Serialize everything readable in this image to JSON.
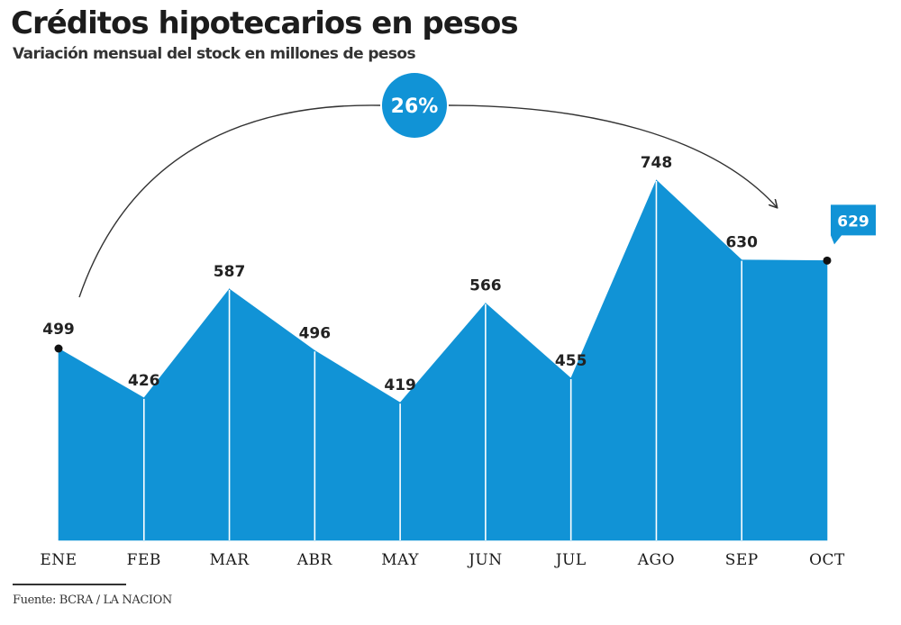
{
  "title": "Créditos hipotecarios en pesos",
  "subtitle": "Variación mensual del stock en millones de pesos",
  "source": "Fuente: BCRA / LA NACION",
  "colors": {
    "area": "#1193d6",
    "divider": "#ffffff",
    "highlight": "#1193d6",
    "arrow": "#333333",
    "marker": "#111111"
  },
  "chart_data": {
    "type": "area",
    "categories": [
      "ENE",
      "FEB",
      "MAR",
      "ABR",
      "MAY",
      "JUN",
      "JUL",
      "AGO",
      "SEP",
      "OCT"
    ],
    "values": [
      499,
      426,
      587,
      496,
      419,
      566,
      455,
      748,
      630,
      629
    ],
    "data_labels": [
      "499",
      "426",
      "587",
      "496",
      "419",
      "566",
      "455",
      "748",
      "630",
      "629"
    ],
    "title": "Créditos hipotecarios en pesos",
    "subtitle": "Variación mensual del stock en millones de pesos",
    "xlabel": "",
    "ylabel": "",
    "ylim": [
      0,
      800
    ],
    "grid": false,
    "legend": "none",
    "annotations": [
      {
        "text": "26%",
        "type": "arrow",
        "from": "ENE",
        "to": "OCT"
      }
    ]
  }
}
